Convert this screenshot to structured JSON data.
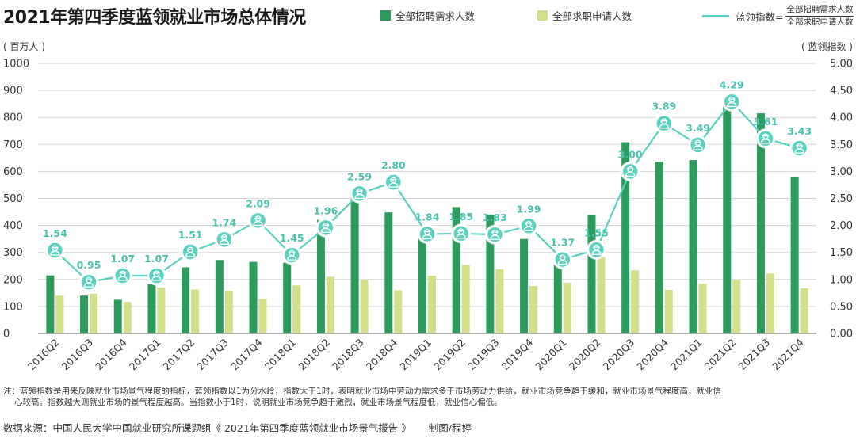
{
  "title": "2021年第四季度蓝领就业市场总体情况",
  "legend": {
    "bar1_label": "全部招聘需求人数",
    "bar2_label": "全部求职申请人数",
    "line_label": "蓝领指数=",
    "line_numerator": "全部招聘需求人数",
    "line_denominator": "全部求职申请人数"
  },
  "colors": {
    "bar1": "#2e9b5e",
    "bar2": "#d2e08c",
    "line": "#5cd1c0",
    "line_label": "#4bc2b0"
  },
  "left_axis_unit": "( 百万人 )",
  "right_axis_unit": "( 蓝领指数 )",
  "icon": "worker-icon",
  "chart_data": {
    "type": "bar",
    "categories": [
      "2016Q2",
      "2016Q3",
      "2016Q4",
      "2017Q1",
      "2017Q2",
      "2017Q3",
      "2017Q4",
      "2018Q1",
      "2018Q2",
      "2018Q3",
      "2018Q4",
      "2019Q1",
      "2019Q2",
      "2019Q3",
      "2019Q4",
      "2020Q1",
      "2020Q2",
      "2020Q3",
      "2020Q4",
      "2021Q1",
      "2021Q2",
      "2021Q3",
      "2021Q4"
    ],
    "series": [
      {
        "name": "全部招聘需求人数",
        "type": "bar",
        "axis": "left",
        "values": [
          215,
          140,
          125,
          182,
          245,
          272,
          265,
          262,
          420,
          525,
          448,
          380,
          468,
          440,
          350,
          260,
          438,
          708,
          636,
          642,
          860,
          815,
          578
        ]
      },
      {
        "name": "全部求职申请人数",
        "type": "bar",
        "axis": "left",
        "values": [
          140,
          147,
          117,
          170,
          163,
          157,
          128,
          178,
          210,
          198,
          160,
          214,
          254,
          238,
          176,
          188,
          283,
          234,
          161,
          184,
          198,
          222,
          167
        ]
      },
      {
        "name": "蓝领指数",
        "type": "line",
        "axis": "right",
        "values": [
          1.54,
          0.95,
          1.07,
          1.07,
          1.51,
          1.74,
          2.09,
          1.45,
          1.96,
          2.59,
          2.8,
          1.84,
          1.85,
          1.83,
          1.99,
          1.37,
          1.55,
          3.0,
          3.89,
          3.49,
          4.29,
          3.61,
          3.43
        ],
        "labels": [
          "1.54",
          "0.95",
          "1.07",
          "1.07",
          "1.51",
          "1.74",
          "2.09",
          "1.45",
          "1.96",
          "2.59",
          "2.80",
          "1.84",
          "1.85",
          "1.83",
          "1.99",
          "1.37",
          "1.55",
          "3.00",
          "3.89",
          "3.49",
          "4.29",
          "3.61",
          "3.43"
        ]
      }
    ],
    "y_left": {
      "min": 0,
      "max": 1000,
      "ticks": [
        "0",
        "100",
        "200",
        "300",
        "400",
        "500",
        "600",
        "700",
        "800",
        "900",
        "1000"
      ]
    },
    "y_right": {
      "min": 0,
      "max": 5,
      "ticks": [
        "0.00",
        "0.50",
        "1.00",
        "1.50",
        "2.00",
        "2.50",
        "3.00",
        "3.50",
        "4.00",
        "4.50",
        "5.00"
      ]
    },
    "grid": true
  },
  "note": {
    "line1": "注：蓝领指数是用来反映就业市场景气程度的指标，蓝领指数以1为分水岭，指数大于1时，表明就业市场中劳动力需求多于市场劳动力供给，就业市场竞争趋于缓和，就业市场景气程度高，就业信",
    "line2": "心较高。指数越大则就业市场的景气程度越高。当指数小于1时，说明就业市场竞争趋于激烈，就业市场景气程度低，就业信心偏低。"
  },
  "source": {
    "text": "数据来源：中国人民大学中国就业研究所课题组《 2021年第四季度蓝领就业市场景气报告 》",
    "credit": "制图/程婷"
  }
}
